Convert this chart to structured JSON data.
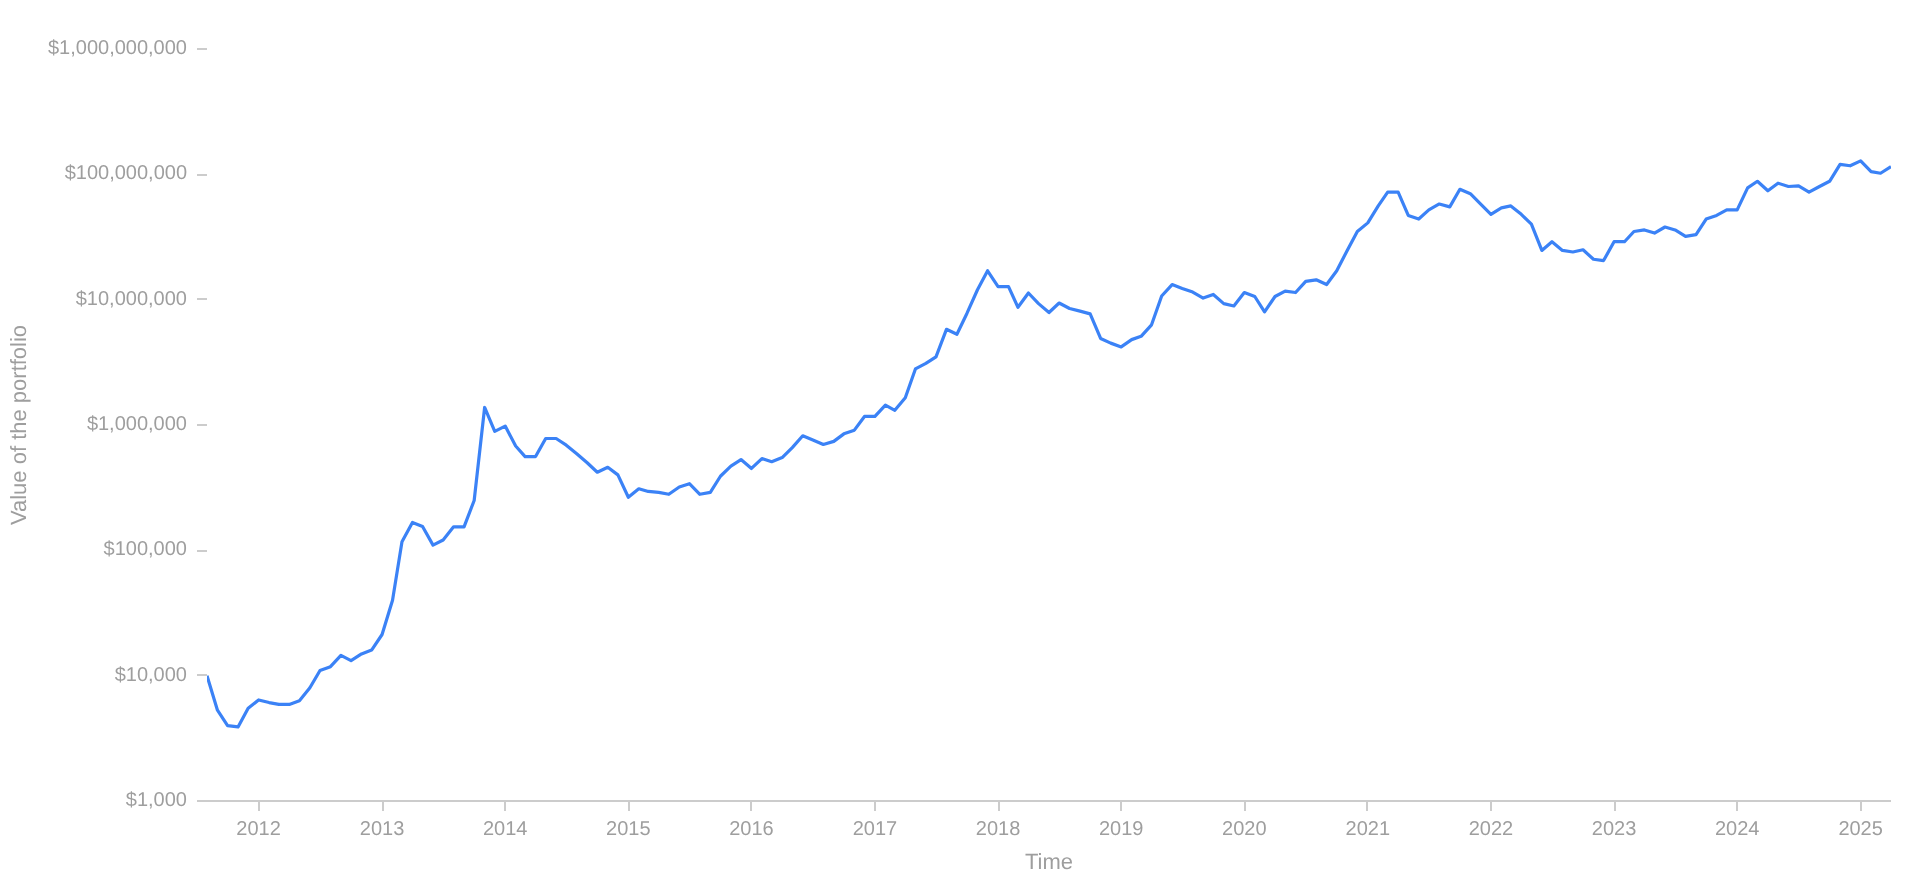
{
  "chart_data": {
    "type": "line",
    "xlabel": "Time",
    "ylabel": "Value of the portfolio",
    "log": "y",
    "xlim": [
      "2011-08",
      "2025-04"
    ],
    "xticks": [
      "2012",
      "2013",
      "2014",
      "2015",
      "2016",
      "2017",
      "2018",
      "2019",
      "2020",
      "2021",
      "2022",
      "2023",
      "2024",
      "2025"
    ],
    "ylim": [
      1000,
      1000000000
    ],
    "yticks": [
      {
        "value": 1000,
        "label": "$1,000"
      },
      {
        "value": 10000,
        "label": "$10,000"
      },
      {
        "value": 100000,
        "label": "$100,000"
      },
      {
        "value": 1000000,
        "label": "$1,000,000"
      },
      {
        "value": 10000000,
        "label": "$10,000,000"
      },
      {
        "value": 100000000,
        "label": "$100,000,000"
      },
      {
        "value": 1000000000,
        "label": "$1,000,000,000"
      }
    ],
    "x": [
      "2011-08",
      "2011-09",
      "2011-10",
      "2011-11",
      "2011-12",
      "2012-01",
      "2012-02",
      "2012-03",
      "2012-04",
      "2012-05",
      "2012-06",
      "2012-07",
      "2012-08",
      "2012-09",
      "2012-10",
      "2012-11",
      "2012-12",
      "2013-01",
      "2013-02",
      "2013-03",
      "2013-04",
      "2013-05",
      "2013-06",
      "2013-07",
      "2013-08",
      "2013-09",
      "2013-10",
      "2013-11",
      "2013-12",
      "2014-01",
      "2014-02",
      "2014-03",
      "2014-04",
      "2014-05",
      "2014-06",
      "2014-07",
      "2014-08",
      "2014-09",
      "2014-10",
      "2014-11",
      "2014-12",
      "2015-01",
      "2015-02",
      "2015-03",
      "2015-04",
      "2015-05",
      "2015-06",
      "2015-07",
      "2015-08",
      "2015-09",
      "2015-10",
      "2015-11",
      "2015-12",
      "2016-01",
      "2016-02",
      "2016-03",
      "2016-04",
      "2016-05",
      "2016-06",
      "2016-07",
      "2016-08",
      "2016-09",
      "2016-10",
      "2016-11",
      "2016-12",
      "2017-01",
      "2017-02",
      "2017-03",
      "2017-04",
      "2017-05",
      "2017-06",
      "2017-07",
      "2017-08",
      "2017-09",
      "2017-10",
      "2017-11",
      "2017-12",
      "2018-01",
      "2018-02",
      "2018-03",
      "2018-04",
      "2018-05",
      "2018-06",
      "2018-07",
      "2018-08",
      "2018-09",
      "2018-10",
      "2018-11",
      "2018-12",
      "2019-01",
      "2019-02",
      "2019-03",
      "2019-04",
      "2019-05",
      "2019-06",
      "2019-07",
      "2019-08",
      "2019-09",
      "2019-10",
      "2019-11",
      "2019-12",
      "2020-01",
      "2020-02",
      "2020-03",
      "2020-04",
      "2020-05",
      "2020-06",
      "2020-07",
      "2020-08",
      "2020-09",
      "2020-10",
      "2020-11",
      "2020-12",
      "2021-01",
      "2021-02",
      "2021-03",
      "2021-04",
      "2021-05",
      "2021-06",
      "2021-07",
      "2021-08",
      "2021-09",
      "2021-10",
      "2021-11",
      "2021-12",
      "2022-01",
      "2022-02",
      "2022-03",
      "2022-04",
      "2022-05",
      "2022-06",
      "2022-07",
      "2022-08",
      "2022-09",
      "2022-10",
      "2022-11",
      "2022-12",
      "2023-01",
      "2023-02",
      "2023-03",
      "2023-04",
      "2023-05",
      "2023-06",
      "2023-07",
      "2023-08",
      "2023-09",
      "2023-10",
      "2023-11",
      "2023-12",
      "2024-01",
      "2024-02",
      "2024-03",
      "2024-04",
      "2024-05",
      "2024-06",
      "2024-07",
      "2024-08",
      "2024-09",
      "2024-10",
      "2024-11",
      "2024-12",
      "2025-01",
      "2025-02",
      "2025-03",
      "2025-04"
    ],
    "series": [
      {
        "color": "#3b82f6",
        "values": [
          10000,
          5300,
          4000,
          3900,
          5500,
          6400,
          6100,
          5900,
          5900,
          6300,
          8000,
          11000,
          11800,
          14500,
          13200,
          14900,
          16000,
          21300,
          40000,
          117000,
          167000,
          155000,
          110000,
          121000,
          154000,
          154000,
          250000,
          1380000,
          890000,
          980000,
          680000,
          560000,
          560000,
          780000,
          780000,
          690000,
          590000,
          500000,
          420000,
          460000,
          400000,
          265000,
          310000,
          295000,
          290000,
          280000,
          320000,
          340000,
          280000,
          290000,
          390000,
          470000,
          530000,
          450000,
          540000,
          510000,
          550000,
          660000,
          820000,
          760000,
          700000,
          740000,
          850000,
          910000,
          1170000,
          1170000,
          1440000,
          1310000,
          1650000,
          2800000,
          3100000,
          3500000,
          5800000,
          5300000,
          7800000,
          12000000,
          17000000,
          12700000,
          12700000,
          8700000,
          11300000,
          9300000,
          7900000,
          9400000,
          8500000,
          8100000,
          7700000,
          4900000,
          4500000,
          4200000,
          4800000,
          5100000,
          6300000,
          10700000,
          13200000,
          12300000,
          11500000,
          10300000,
          11000000,
          9300000,
          8900000,
          11400000,
          10600000,
          8000000,
          10600000,
          11700000,
          11400000,
          14000000,
          14400000,
          13200000,
          17000000,
          24700000,
          35000000,
          41000000,
          56000000,
          72000000,
          72000000,
          47000000,
          44000000,
          52000000,
          58000000,
          55000000,
          76000000,
          70000000,
          58000000,
          48000000,
          54000000,
          56000000,
          48000000,
          40000000,
          24700000,
          29000000,
          24700000,
          24000000,
          25000000,
          21000000,
          20500000,
          29000000,
          29000000,
          35000000,
          36000000,
          34000000,
          38000000,
          36000000,
          32000000,
          33000000,
          44000000,
          47000000,
          52000000,
          52000000,
          78000000,
          88000000,
          74000000,
          85000000,
          80000000,
          81000000,
          72000000,
          80000000,
          88000000,
          120000000,
          117000000,
          128000000,
          105000000,
          102000000,
          115000000
        ]
      }
    ]
  }
}
